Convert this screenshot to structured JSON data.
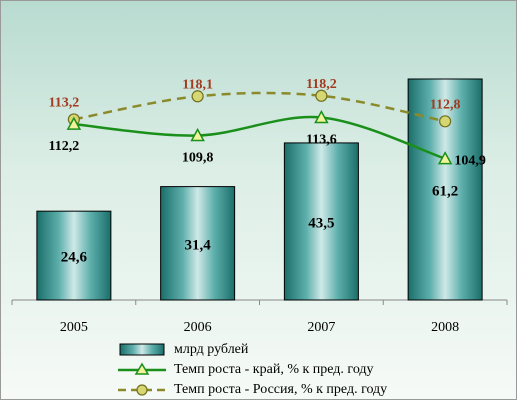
{
  "chart_data": {
    "type": "bar",
    "categories": [
      "2005",
      "2006",
      "2007",
      "2008"
    ],
    "series": [
      {
        "name": "млрд рублей",
        "type": "bar",
        "values": [
          24.6,
          31.4,
          43.5,
          61.2
        ],
        "value_labels": [
          "24,6",
          "31,4",
          "43,5",
          "61,2"
        ],
        "color": "#2c8c88"
      },
      {
        "name": "Темп роста - край, % к пред. году",
        "type": "line",
        "values": [
          112.2,
          109.8,
          113.6,
          104.9
        ],
        "value_labels": [
          "112,2",
          "109,8",
          "113,6",
          "104,9"
        ],
        "color": "#1a8f1a",
        "marker": "triangle"
      },
      {
        "name": "Темп роста - Россия, % к пред. году",
        "type": "line",
        "dash": "dashed",
        "values": [
          113.2,
          118.1,
          118.2,
          112.8
        ],
        "value_labels": [
          "113,2",
          "118,1",
          "118,2",
          "112,8"
        ],
        "color": "#8a8a2a",
        "label_color": "#a23a1f",
        "marker": "circle"
      }
    ],
    "title": "",
    "xlabel": "",
    "ylabel": "",
    "ylim": [
      0,
      72
    ],
    "line_axis": "secondary",
    "line_ylim": [
      75,
      130
    ],
    "grid": false,
    "legend_position": "bottom"
  }
}
